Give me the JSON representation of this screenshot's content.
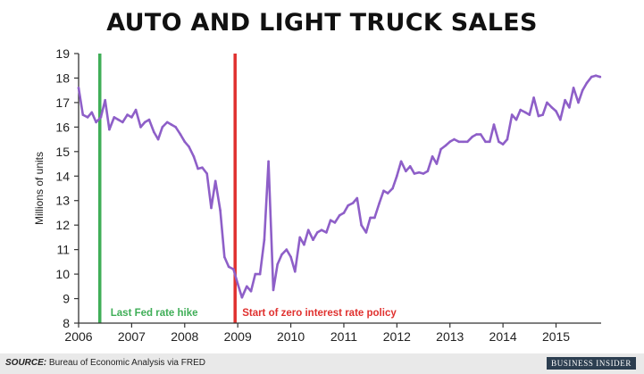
{
  "title": "AUTO AND LIGHT TRUCK SALES",
  "colors": {
    "line": "#8e5fc8",
    "hike": "#3fae57",
    "zirp": "#e0312f",
    "axis": "#333333"
  },
  "annotations": {
    "hike_label": "Last Fed rate hike",
    "zirp_label": "Start of zero interest rate policy"
  },
  "footer": {
    "source_label": "SOURCE:",
    "source_text": "Bureau of Economic Analysis via FRED",
    "brand": "BUSINESS INSIDER"
  },
  "chart_data": {
    "type": "line",
    "title": "AUTO AND LIGHT TRUCK SALES",
    "xlabel": "",
    "ylabel": "Millions of units",
    "xlim": [
      2006,
      2015.85
    ],
    "ylim": [
      8,
      19
    ],
    "x_ticks": [
      "2006",
      "2007",
      "2008",
      "2009",
      "2010",
      "2011",
      "2012",
      "2013",
      "2014",
      "2015"
    ],
    "y_ticks": [
      "8",
      "9",
      "10",
      "11",
      "12",
      "13",
      "14",
      "15",
      "16",
      "17",
      "18",
      "19"
    ],
    "grid": false,
    "legend": "none",
    "markers": [
      {
        "x": 2006.4,
        "label": "Last Fed rate hike"
      },
      {
        "x": 2008.95,
        "label": "Start of zero interest rate policy"
      }
    ],
    "series": [
      {
        "x": [
          2006.0,
          2006.08,
          2006.17,
          2006.25,
          2006.33,
          2006.42,
          2006.5,
          2006.58,
          2006.67,
          2006.75,
          2006.83,
          2006.92,
          2007.0,
          2007.08,
          2007.17,
          2007.25,
          2007.33,
          2007.42,
          2007.5,
          2007.58,
          2007.67,
          2007.75,
          2007.83,
          2007.92,
          2008.0,
          2008.08,
          2008.17,
          2008.25,
          2008.33,
          2008.42,
          2008.5,
          2008.58,
          2008.67,
          2008.75,
          2008.83,
          2008.92,
          2009.0,
          2009.08,
          2009.17,
          2009.25,
          2009.33,
          2009.42,
          2009.5,
          2009.58,
          2009.67,
          2009.75,
          2009.83,
          2009.92,
          2010.0,
          2010.08,
          2010.17,
          2010.25,
          2010.33,
          2010.42,
          2010.5,
          2010.58,
          2010.67,
          2010.75,
          2010.83,
          2010.92,
          2011.0,
          2011.08,
          2011.17,
          2011.25,
          2011.33,
          2011.42,
          2011.5,
          2011.58,
          2011.67,
          2011.75,
          2011.83,
          2011.92,
          2012.0,
          2012.08,
          2012.17,
          2012.25,
          2012.33,
          2012.42,
          2012.5,
          2012.58,
          2012.67,
          2012.75,
          2012.83,
          2012.92,
          2013.0,
          2013.08,
          2013.17,
          2013.25,
          2013.33,
          2013.42,
          2013.5,
          2013.58,
          2013.67,
          2013.75,
          2013.83,
          2013.92,
          2014.0,
          2014.08,
          2014.17,
          2014.25,
          2014.33,
          2014.42,
          2014.5,
          2014.58,
          2014.67,
          2014.75,
          2014.83,
          2014.92,
          2015.0,
          2015.08,
          2015.17,
          2015.25,
          2015.33,
          2015.42,
          2015.5,
          2015.58,
          2015.67,
          2015.75,
          2015.83
        ],
        "values": [
          17.6,
          16.5,
          16.4,
          16.6,
          16.2,
          16.4,
          17.1,
          15.9,
          16.4,
          16.3,
          16.2,
          16.5,
          16.4,
          16.7,
          16.0,
          16.2,
          16.3,
          15.8,
          15.5,
          16.0,
          16.2,
          16.1,
          16.0,
          15.7,
          15.4,
          15.2,
          14.8,
          14.3,
          14.35,
          14.1,
          12.7,
          13.8,
          12.6,
          10.7,
          10.3,
          10.2,
          9.6,
          9.05,
          9.5,
          9.3,
          10.0,
          10.0,
          11.4,
          14.6,
          9.35,
          10.4,
          10.8,
          11.0,
          10.7,
          10.1,
          11.5,
          11.2,
          11.8,
          11.4,
          11.7,
          11.8,
          11.7,
          12.2,
          12.1,
          12.4,
          12.5,
          12.8,
          12.9,
          13.1,
          12.0,
          11.7,
          12.3,
          12.3,
          12.9,
          13.4,
          13.3,
          13.5,
          14.0,
          14.6,
          14.2,
          14.4,
          14.1,
          14.15,
          14.1,
          14.2,
          14.8,
          14.5,
          15.1,
          15.25,
          15.4,
          15.5,
          15.4,
          15.4,
          15.4,
          15.6,
          15.7,
          15.7,
          15.4,
          15.4,
          16.1,
          15.4,
          15.3,
          15.5,
          16.5,
          16.3,
          16.7,
          16.6,
          16.5,
          17.2,
          16.45,
          16.5,
          17.0,
          16.8,
          16.65,
          16.3,
          17.1,
          16.8,
          17.6,
          17.0,
          17.5,
          17.8,
          18.05,
          18.1,
          18.05
        ]
      }
    ]
  }
}
